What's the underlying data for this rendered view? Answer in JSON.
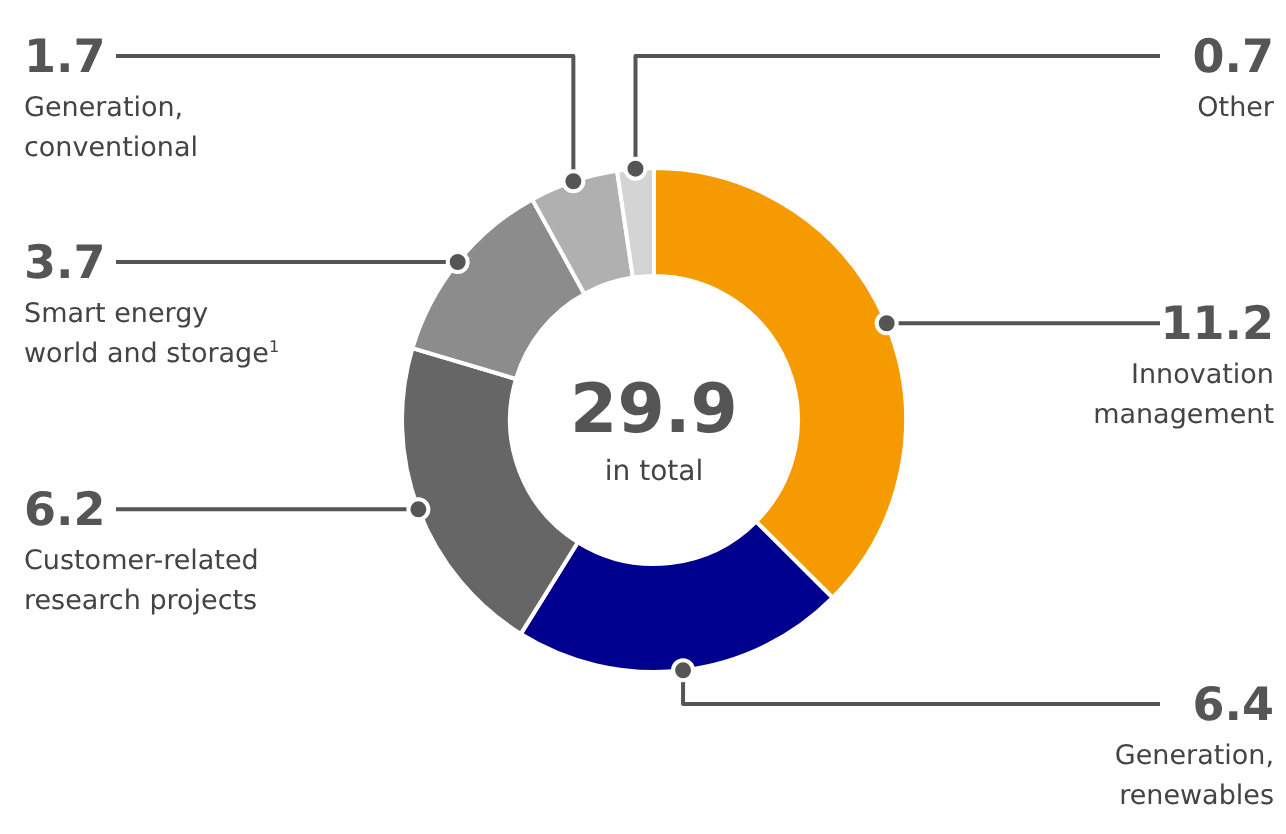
{
  "chart_data": {
    "type": "donut",
    "title": "29.9",
    "subtitle": "in total",
    "categories": [
      "Innovation management",
      "Generation, renewables",
      "Customer-related research projects",
      "Smart energy world and storage$^{1}$",
      "Generation, conventional",
      "Other"
    ],
    "values": [
      11.2,
      6.4,
      6.2,
      3.7,
      1.7,
      0.7
    ],
    "colors": [
      "#f59a00",
      "#00008f",
      "#666666",
      "#8c8c8c",
      "#b0b0b0",
      "#d4d4d4"
    ],
    "data_labels": true
  }
}
